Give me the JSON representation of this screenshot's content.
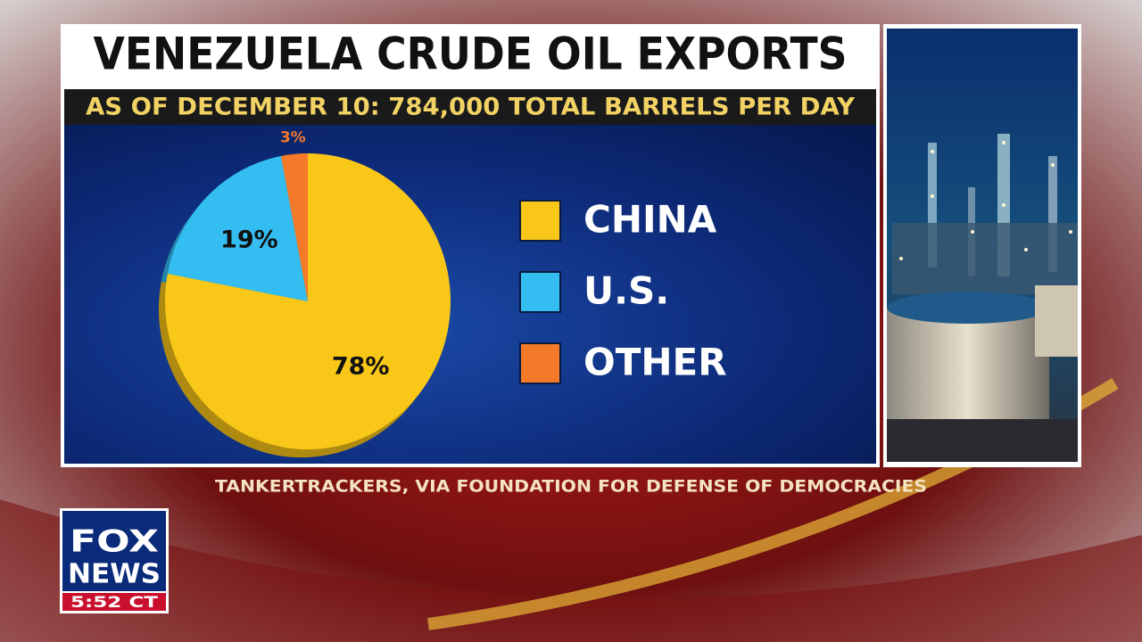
{
  "chart_data": {
    "type": "pie",
    "title": "VENEZUELA CRUDE OIL EXPORTS",
    "subtitle": "AS OF DECEMBER 10: 784,000 TOTAL BARRELS PER DAY",
    "categories": [
      "CHINA",
      "U.S.",
      "OTHER"
    ],
    "values": [
      78,
      19,
      3
    ],
    "value_labels": [
      "78%",
      "19%",
      "3%"
    ],
    "colors": [
      "#f9c718",
      "#34bdf0",
      "#f47a2a"
    ],
    "legend": "right"
  },
  "source": "TANKERTRACKERS, VIA FOUNDATION FOR DEFENSE OF DEMOCRACIES",
  "logo": {
    "line1": "FOX",
    "line2": "NEWS",
    "time": "5:52 CT"
  }
}
